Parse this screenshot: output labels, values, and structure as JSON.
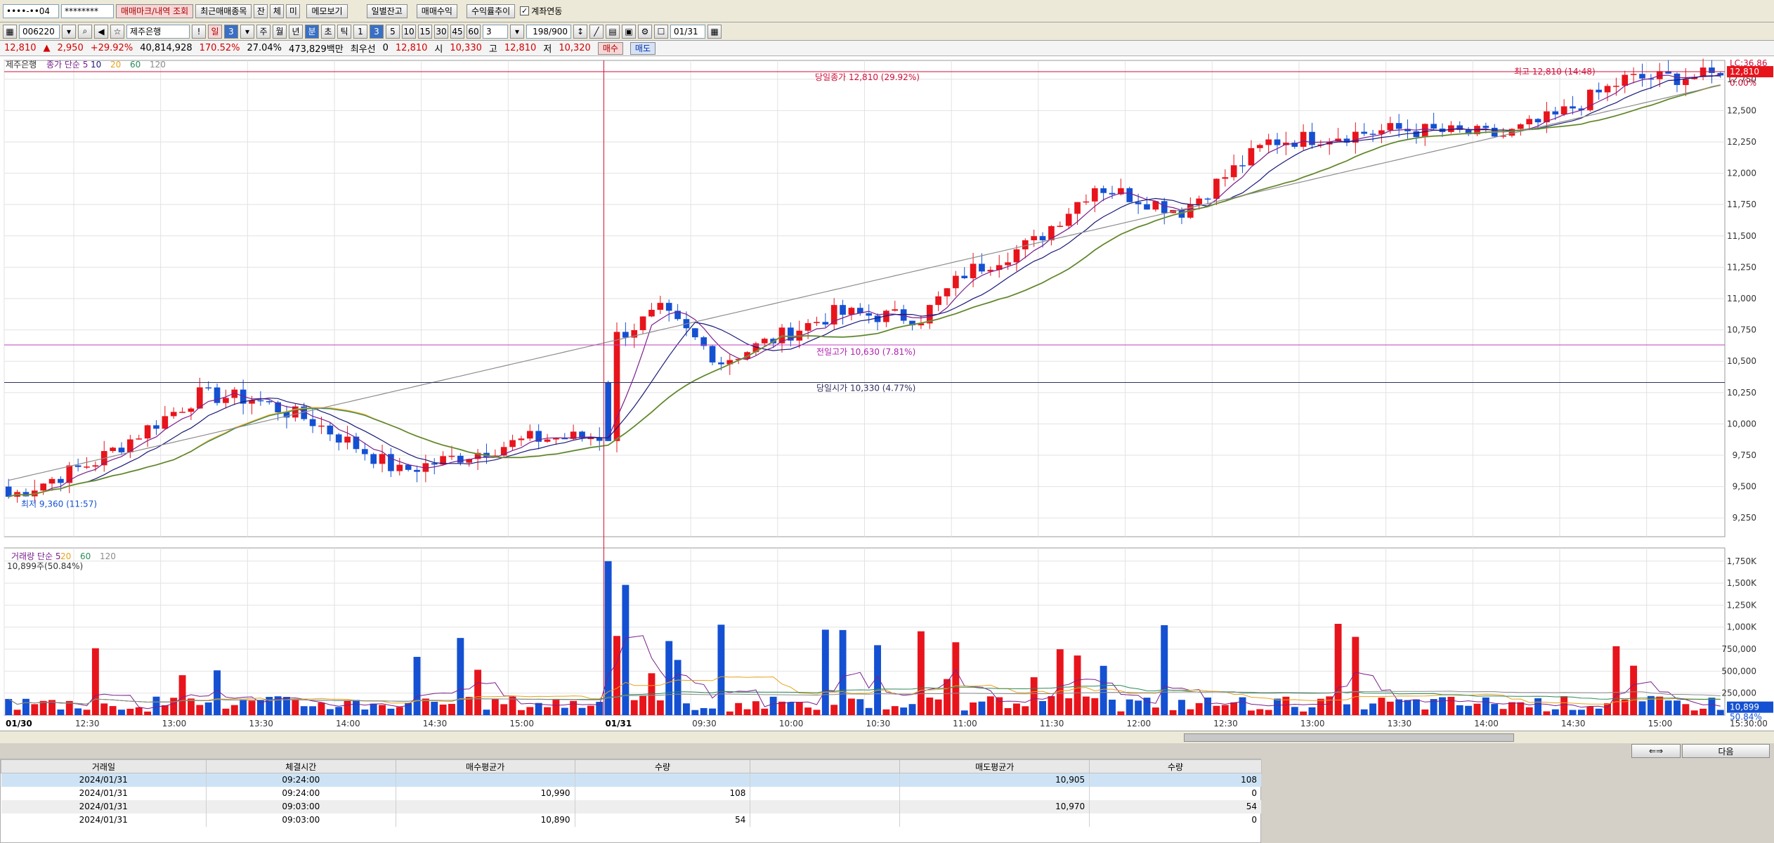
{
  "toolbar": {
    "account": "••••-••04",
    "password": "********",
    "trade_mark_btn": "매매마크/내역 조회",
    "recent_items_btn": "최근매매종목",
    "cheon": "잔",
    "che": "체",
    "mi": "미",
    "memo_btn": "메모보기",
    "daily_balance_btn": "일별잔고",
    "trade_profit_btn": "매매수익",
    "profit_rate_btn": "수익률추이",
    "account_link_label": "계좌연동",
    "stock_code": "006220",
    "stock_name": "제주은행",
    "period_btns": [
      "일",
      "3",
      "주",
      "월",
      "년",
      "분",
      "초",
      "틱"
    ],
    "minute_btns": [
      "1",
      "3",
      "5",
      "10",
      "15",
      "30",
      "45",
      "60"
    ],
    "interval_value": "3",
    "count": "198/900",
    "date_value": "01/31"
  },
  "quote": {
    "price": "12,810",
    "change": "2,950",
    "change_pct": "+29.92%",
    "volume": "40,814,928",
    "vol_ratio": "170.52%",
    "turnover": "27.04%",
    "amount": "473,829백만",
    "pref_label": "최우선",
    "pref_value": "0",
    "last": "12,810",
    "open_label": "시",
    "open": "10,330",
    "high_label": "고",
    "high": "12,810",
    "low_label": "저",
    "low": "10,320",
    "buy_btn": "매수",
    "sell_btn": "매도"
  },
  "colors": {
    "up": "#e8141c",
    "down": "#1450d2",
    "ma5": "#7a1f8c",
    "ma10": "#1a1a7a",
    "ma20": "#e8a21a",
    "ma60": "#2a8a5a",
    "ma120": "#8c8c8c"
  },
  "chart_data": [
    {
      "type": "candlestick",
      "title": "제주은행",
      "legend": [
        "종가 단순 5",
        "10",
        "20",
        "60",
        "120"
      ],
      "yticks": [
        "12,750",
        "12,500",
        "12,250",
        "12,000",
        "11,750",
        "11,500",
        "11,250",
        "11,000",
        "10,750",
        "10,500",
        "10,250",
        "10,000",
        "9,750",
        "9,500",
        "9,250"
      ],
      "ylim": [
        9100,
        12900
      ],
      "xticks": [
        "01/30",
        "12:30",
        "13:00",
        "13:30",
        "14:00",
        "14:30",
        "15:00",
        "01/31",
        "09:30",
        "10:00",
        "10:30",
        "11:00",
        "11:30",
        "12:00",
        "12:30",
        "13:00",
        "13:30",
        "14:00",
        "14:30",
        "15:00"
      ],
      "annotations": {
        "day_high": "당일종가 12,810 (29.92%)",
        "prev_high": "전일고가 10,630 (7.81%)",
        "day_open": "당일시가 10,330 (4.77%)",
        "high_mark": "최고 12,810 (14:48)",
        "low_mark": "최저 9,360 (11:57)",
        "lc": "LC:36.86",
        "right_price": "12,810",
        "right_pct": "0.00%"
      },
      "ref_lines": {
        "high": 12810,
        "prev_high": 10630,
        "open": 10330
      }
    },
    {
      "type": "bar",
      "title": "거래량",
      "legend": [
        "거래량 단순 5",
        "20",
        "60",
        "120"
      ],
      "sub_label": "10,899주(50.84%)",
      "yticks": [
        "1,750K",
        "1,500K",
        "1,250K",
        "1,000K",
        "750,000",
        "500,000",
        "250,000"
      ],
      "ylim": [
        0,
        1900000
      ],
      "right_value": "10,899",
      "right_pct": "50.84%",
      "time_label": "15:30:00"
    }
  ],
  "table": {
    "headers": [
      "거래일",
      "체결시간",
      "매수평균가",
      "수량",
      "",
      "매도평균가",
      "수량"
    ],
    "rows": [
      [
        "2024/01/31",
        "09:24:00",
        "",
        "",
        "",
        "10,905",
        "108"
      ],
      [
        "2024/01/31",
        "09:24:00",
        "10,990",
        "108",
        "",
        "",
        "0"
      ],
      [
        "2024/01/31",
        "09:03:00",
        "",
        "",
        "",
        "10,970",
        "54"
      ],
      [
        "2024/01/31",
        "09:03:00",
        "10,890",
        "54",
        "",
        "",
        "0"
      ]
    ]
  },
  "nav": {
    "next_label": "다음"
  }
}
